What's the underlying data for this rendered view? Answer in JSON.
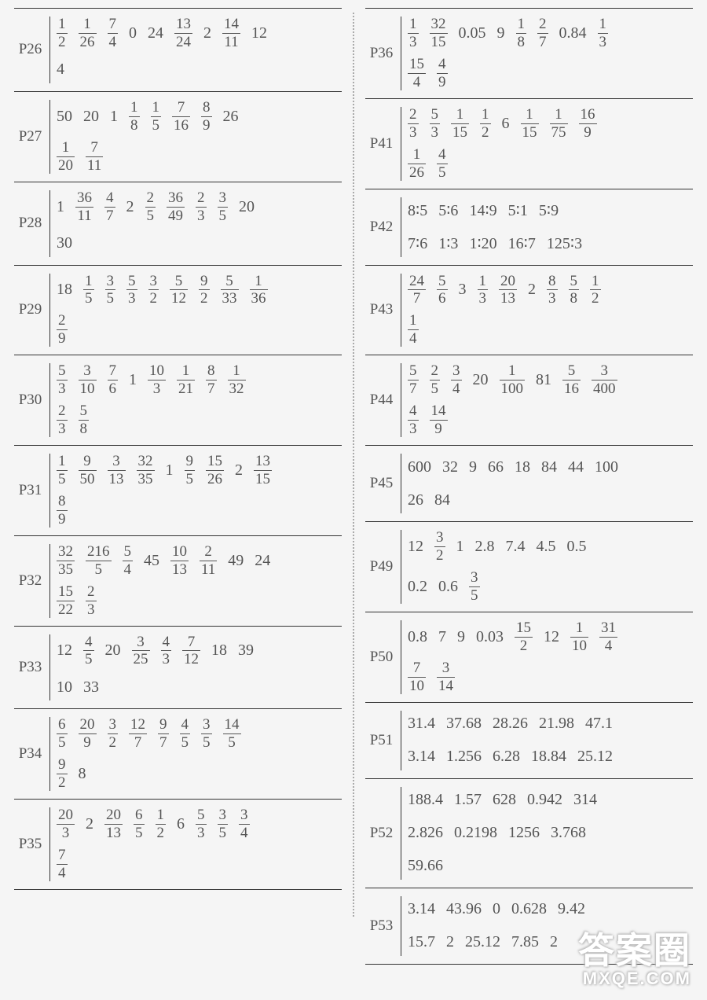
{
  "font_color": "#555555",
  "border_color": "#333333",
  "background_color": "#f5f5f5",
  "watermark": {
    "line1": "答案圈",
    "line2": "MXQE.COM"
  },
  "left": [
    {
      "label": "P26",
      "vals": [
        {
          "t": "frac",
          "n": "1",
          "d": "2"
        },
        {
          "t": "frac",
          "n": "1",
          "d": "26"
        },
        {
          "t": "frac",
          "n": "7",
          "d": "4"
        },
        {
          "t": "txt",
          "v": "0"
        },
        {
          "t": "txt",
          "v": "24"
        },
        {
          "t": "frac",
          "n": "13",
          "d": "24"
        },
        {
          "t": "txt",
          "v": "2"
        },
        {
          "t": "frac",
          "n": "14",
          "d": "11"
        },
        {
          "t": "txt",
          "v": "12"
        },
        {
          "t": "br"
        },
        {
          "t": "txt",
          "v": "4"
        }
      ]
    },
    {
      "label": "P27",
      "vals": [
        {
          "t": "txt",
          "v": "50"
        },
        {
          "t": "txt",
          "v": "20"
        },
        {
          "t": "txt",
          "v": "1"
        },
        {
          "t": "frac",
          "n": "1",
          "d": "8"
        },
        {
          "t": "frac",
          "n": "1",
          "d": "5"
        },
        {
          "t": "frac",
          "n": "7",
          "d": "16"
        },
        {
          "t": "frac",
          "n": "8",
          "d": "9"
        },
        {
          "t": "txt",
          "v": "26"
        },
        {
          "t": "br"
        },
        {
          "t": "frac",
          "n": "1",
          "d": "20"
        },
        {
          "t": "frac",
          "n": "7",
          "d": "11"
        }
      ]
    },
    {
      "label": "P28",
      "vals": [
        {
          "t": "txt",
          "v": "1"
        },
        {
          "t": "frac",
          "n": "36",
          "d": "11"
        },
        {
          "t": "frac",
          "n": "4",
          "d": "7"
        },
        {
          "t": "txt",
          "v": "2"
        },
        {
          "t": "frac",
          "n": "2",
          "d": "5"
        },
        {
          "t": "frac",
          "n": "36",
          "d": "49"
        },
        {
          "t": "frac",
          "n": "2",
          "d": "3"
        },
        {
          "t": "frac",
          "n": "3",
          "d": "5"
        },
        {
          "t": "txt",
          "v": "20"
        },
        {
          "t": "br"
        },
        {
          "t": "txt",
          "v": "30"
        }
      ]
    },
    {
      "label": "P29",
      "vals": [
        {
          "t": "txt",
          "v": "18"
        },
        {
          "t": "frac",
          "n": "1",
          "d": "5"
        },
        {
          "t": "frac",
          "n": "3",
          "d": "5"
        },
        {
          "t": "frac",
          "n": "5",
          "d": "3"
        },
        {
          "t": "frac",
          "n": "3",
          "d": "2"
        },
        {
          "t": "frac",
          "n": "5",
          "d": "12"
        },
        {
          "t": "frac",
          "n": "9",
          "d": "2"
        },
        {
          "t": "frac",
          "n": "5",
          "d": "33"
        },
        {
          "t": "frac",
          "n": "1",
          "d": "36"
        },
        {
          "t": "br"
        },
        {
          "t": "frac",
          "n": "2",
          "d": "9"
        }
      ]
    },
    {
      "label": "P30",
      "vals": [
        {
          "t": "frac",
          "n": "5",
          "d": "3"
        },
        {
          "t": "frac",
          "n": "3",
          "d": "10"
        },
        {
          "t": "frac",
          "n": "7",
          "d": "6"
        },
        {
          "t": "txt",
          "v": "1"
        },
        {
          "t": "frac",
          "n": "10",
          "d": "3"
        },
        {
          "t": "frac",
          "n": "1",
          "d": "21"
        },
        {
          "t": "frac",
          "n": "8",
          "d": "7"
        },
        {
          "t": "frac",
          "n": "1",
          "d": "32"
        },
        {
          "t": "br"
        },
        {
          "t": "frac",
          "n": "2",
          "d": "3"
        },
        {
          "t": "frac",
          "n": "5",
          "d": "8"
        }
      ]
    },
    {
      "label": "P31",
      "vals": [
        {
          "t": "frac",
          "n": "1",
          "d": "5"
        },
        {
          "t": "frac",
          "n": "9",
          "d": "50"
        },
        {
          "t": "frac",
          "n": "3",
          "d": "13"
        },
        {
          "t": "frac",
          "n": "32",
          "d": "35"
        },
        {
          "t": "txt",
          "v": "1"
        },
        {
          "t": "frac",
          "n": "9",
          "d": "5"
        },
        {
          "t": "frac",
          "n": "15",
          "d": "26"
        },
        {
          "t": "txt",
          "v": "2"
        },
        {
          "t": "frac",
          "n": "13",
          "d": "15"
        },
        {
          "t": "br"
        },
        {
          "t": "frac",
          "n": "8",
          "d": "9"
        }
      ]
    },
    {
      "label": "P32",
      "vals": [
        {
          "t": "frac",
          "n": "32",
          "d": "35"
        },
        {
          "t": "frac",
          "n": "216",
          "d": "5"
        },
        {
          "t": "frac",
          "n": "5",
          "d": "4"
        },
        {
          "t": "txt",
          "v": "45"
        },
        {
          "t": "frac",
          "n": "10",
          "d": "13"
        },
        {
          "t": "frac",
          "n": "2",
          "d": "11"
        },
        {
          "t": "txt",
          "v": "49"
        },
        {
          "t": "txt",
          "v": "24"
        },
        {
          "t": "br"
        },
        {
          "t": "frac",
          "n": "15",
          "d": "22"
        },
        {
          "t": "frac",
          "n": "2",
          "d": "3"
        }
      ]
    },
    {
      "label": "P33",
      "vals": [
        {
          "t": "txt",
          "v": "12"
        },
        {
          "t": "frac",
          "n": "4",
          "d": "5"
        },
        {
          "t": "txt",
          "v": "20"
        },
        {
          "t": "frac",
          "n": "3",
          "d": "25"
        },
        {
          "t": "frac",
          "n": "4",
          "d": "3"
        },
        {
          "t": "frac",
          "n": "7",
          "d": "12"
        },
        {
          "t": "txt",
          "v": "18"
        },
        {
          "t": "txt",
          "v": "39"
        },
        {
          "t": "br"
        },
        {
          "t": "txt",
          "v": "10"
        },
        {
          "t": "txt",
          "v": "33"
        }
      ]
    },
    {
      "label": "P34",
      "vals": [
        {
          "t": "frac",
          "n": "6",
          "d": "5"
        },
        {
          "t": "frac",
          "n": "20",
          "d": "9"
        },
        {
          "t": "frac",
          "n": "3",
          "d": "2"
        },
        {
          "t": "frac",
          "n": "12",
          "d": "7"
        },
        {
          "t": "frac",
          "n": "9",
          "d": "7"
        },
        {
          "t": "frac",
          "n": "4",
          "d": "5"
        },
        {
          "t": "frac",
          "n": "3",
          "d": "5"
        },
        {
          "t": "frac",
          "n": "14",
          "d": "5"
        },
        {
          "t": "br"
        },
        {
          "t": "frac",
          "n": "9",
          "d": "2"
        },
        {
          "t": "txt",
          "v": "8"
        }
      ]
    },
    {
      "label": "P35",
      "vals": [
        {
          "t": "frac",
          "n": "20",
          "d": "3"
        },
        {
          "t": "txt",
          "v": "2"
        },
        {
          "t": "frac",
          "n": "20",
          "d": "13"
        },
        {
          "t": "frac",
          "n": "6",
          "d": "5"
        },
        {
          "t": "frac",
          "n": "1",
          "d": "2"
        },
        {
          "t": "txt",
          "v": "6"
        },
        {
          "t": "frac",
          "n": "5",
          "d": "3"
        },
        {
          "t": "frac",
          "n": "3",
          "d": "5"
        },
        {
          "t": "frac",
          "n": "3",
          "d": "4"
        },
        {
          "t": "br"
        },
        {
          "t": "frac",
          "n": "7",
          "d": "4"
        }
      ]
    }
  ],
  "right": [
    {
      "label": "P36",
      "vals": [
        {
          "t": "frac",
          "n": "1",
          "d": "3"
        },
        {
          "t": "frac",
          "n": "32",
          "d": "15"
        },
        {
          "t": "txt",
          "v": "0.05"
        },
        {
          "t": "txt",
          "v": "9"
        },
        {
          "t": "frac",
          "n": "1",
          "d": "8"
        },
        {
          "t": "frac",
          "n": "2",
          "d": "7"
        },
        {
          "t": "txt",
          "v": "0.84"
        },
        {
          "t": "frac",
          "n": "1",
          "d": "3"
        },
        {
          "t": "br"
        },
        {
          "t": "frac",
          "n": "15",
          "d": "4"
        },
        {
          "t": "frac",
          "n": "4",
          "d": "9"
        }
      ]
    },
    {
      "label": "P41",
      "vals": [
        {
          "t": "frac",
          "n": "2",
          "d": "3"
        },
        {
          "t": "frac",
          "n": "5",
          "d": "3"
        },
        {
          "t": "frac",
          "n": "1",
          "d": "15"
        },
        {
          "t": "frac",
          "n": "1",
          "d": "2"
        },
        {
          "t": "txt",
          "v": "6"
        },
        {
          "t": "frac",
          "n": "1",
          "d": "15"
        },
        {
          "t": "frac",
          "n": "1",
          "d": "75"
        },
        {
          "t": "frac",
          "n": "16",
          "d": "9"
        },
        {
          "t": "br"
        },
        {
          "t": "frac",
          "n": "1",
          "d": "26"
        },
        {
          "t": "frac",
          "n": "4",
          "d": "5"
        }
      ]
    },
    {
      "label": "P42",
      "vals": [
        {
          "t": "txt",
          "v": "8∶5"
        },
        {
          "t": "txt",
          "v": "5∶6"
        },
        {
          "t": "txt",
          "v": "14∶9"
        },
        {
          "t": "txt",
          "v": "5∶1"
        },
        {
          "t": "txt",
          "v": "5∶9"
        },
        {
          "t": "br"
        },
        {
          "t": "txt",
          "v": "7∶6"
        },
        {
          "t": "txt",
          "v": "1∶3"
        },
        {
          "t": "txt",
          "v": "1∶20"
        },
        {
          "t": "txt",
          "v": "16∶7"
        },
        {
          "t": "txt",
          "v": "125∶3"
        }
      ]
    },
    {
      "label": "P43",
      "vals": [
        {
          "t": "frac",
          "n": "24",
          "d": "7"
        },
        {
          "t": "frac",
          "n": "5",
          "d": "6"
        },
        {
          "t": "txt",
          "v": "3"
        },
        {
          "t": "frac",
          "n": "1",
          "d": "3"
        },
        {
          "t": "frac",
          "n": "20",
          "d": "13"
        },
        {
          "t": "txt",
          "v": "2"
        },
        {
          "t": "frac",
          "n": "8",
          "d": "3"
        },
        {
          "t": "frac",
          "n": "5",
          "d": "8"
        },
        {
          "t": "frac",
          "n": "1",
          "d": "2"
        },
        {
          "t": "br"
        },
        {
          "t": "frac",
          "n": "1",
          "d": "4"
        }
      ]
    },
    {
      "label": "P44",
      "vals": [
        {
          "t": "frac",
          "n": "5",
          "d": "7"
        },
        {
          "t": "frac",
          "n": "2",
          "d": "5"
        },
        {
          "t": "frac",
          "n": "3",
          "d": "4"
        },
        {
          "t": "txt",
          "v": "20"
        },
        {
          "t": "frac",
          "n": "1",
          "d": "100"
        },
        {
          "t": "txt",
          "v": "81"
        },
        {
          "t": "frac",
          "n": "5",
          "d": "16"
        },
        {
          "t": "frac",
          "n": "3",
          "d": "400"
        },
        {
          "t": "br"
        },
        {
          "t": "frac",
          "n": "4",
          "d": "3"
        },
        {
          "t": "frac",
          "n": "14",
          "d": "9"
        }
      ]
    },
    {
      "label": "P45",
      "vals": [
        {
          "t": "txt",
          "v": "600"
        },
        {
          "t": "txt",
          "v": "32"
        },
        {
          "t": "txt",
          "v": "9"
        },
        {
          "t": "txt",
          "v": "66"
        },
        {
          "t": "txt",
          "v": "18"
        },
        {
          "t": "txt",
          "v": "84"
        },
        {
          "t": "txt",
          "v": "44"
        },
        {
          "t": "txt",
          "v": "100"
        },
        {
          "t": "br"
        },
        {
          "t": "txt",
          "v": "26"
        },
        {
          "t": "txt",
          "v": "84"
        }
      ]
    },
    {
      "label": "P49",
      "vals": [
        {
          "t": "txt",
          "v": "12"
        },
        {
          "t": "frac",
          "n": "3",
          "d": "2"
        },
        {
          "t": "txt",
          "v": "1"
        },
        {
          "t": "txt",
          "v": "2.8"
        },
        {
          "t": "txt",
          "v": "7.4"
        },
        {
          "t": "txt",
          "v": "4.5"
        },
        {
          "t": "txt",
          "v": "0.5"
        },
        {
          "t": "br"
        },
        {
          "t": "txt",
          "v": "0.2"
        },
        {
          "t": "txt",
          "v": "0.6"
        },
        {
          "t": "frac",
          "n": "3",
          "d": "5"
        }
      ]
    },
    {
      "label": "P50",
      "vals": [
        {
          "t": "txt",
          "v": "0.8"
        },
        {
          "t": "txt",
          "v": "7"
        },
        {
          "t": "txt",
          "v": "9"
        },
        {
          "t": "txt",
          "v": "0.03"
        },
        {
          "t": "frac",
          "n": "15",
          "d": "2"
        },
        {
          "t": "txt",
          "v": "12"
        },
        {
          "t": "frac",
          "n": "1",
          "d": "10"
        },
        {
          "t": "frac",
          "n": "31",
          "d": "4"
        },
        {
          "t": "br"
        },
        {
          "t": "frac",
          "n": "7",
          "d": "10"
        },
        {
          "t": "frac",
          "n": "3",
          "d": "14"
        }
      ]
    },
    {
      "label": "P51",
      "vals": [
        {
          "t": "txt",
          "v": "31.4"
        },
        {
          "t": "txt",
          "v": "37.68"
        },
        {
          "t": "txt",
          "v": "28.26"
        },
        {
          "t": "txt",
          "v": "21.98"
        },
        {
          "t": "txt",
          "v": "47.1"
        },
        {
          "t": "br"
        },
        {
          "t": "txt",
          "v": "3.14"
        },
        {
          "t": "txt",
          "v": "1.256"
        },
        {
          "t": "txt",
          "v": "6.28"
        },
        {
          "t": "txt",
          "v": "18.84"
        },
        {
          "t": "txt",
          "v": "25.12"
        }
      ]
    },
    {
      "label": "P52",
      "vals": [
        {
          "t": "txt",
          "v": "188.4"
        },
        {
          "t": "txt",
          "v": "1.57"
        },
        {
          "t": "txt",
          "v": "628"
        },
        {
          "t": "txt",
          "v": "0.942"
        },
        {
          "t": "txt",
          "v": "314"
        },
        {
          "t": "br"
        },
        {
          "t": "txt",
          "v": "2.826"
        },
        {
          "t": "txt",
          "v": "0.2198"
        },
        {
          "t": "txt",
          "v": "1256"
        },
        {
          "t": "txt",
          "v": "3.768"
        },
        {
          "t": "br"
        },
        {
          "t": "txt",
          "v": "59.66"
        }
      ]
    },
    {
      "label": "P53",
      "vals": [
        {
          "t": "txt",
          "v": "3.14"
        },
        {
          "t": "txt",
          "v": "43.96"
        },
        {
          "t": "txt",
          "v": "0"
        },
        {
          "t": "txt",
          "v": "0.628"
        },
        {
          "t": "txt",
          "v": "9.42"
        },
        {
          "t": "br"
        },
        {
          "t": "txt",
          "v": "15.7"
        },
        {
          "t": "txt",
          "v": "2"
        },
        {
          "t": "txt",
          "v": "25.12"
        },
        {
          "t": "txt",
          "v": "7.85"
        },
        {
          "t": "txt",
          "v": "2"
        }
      ]
    }
  ]
}
